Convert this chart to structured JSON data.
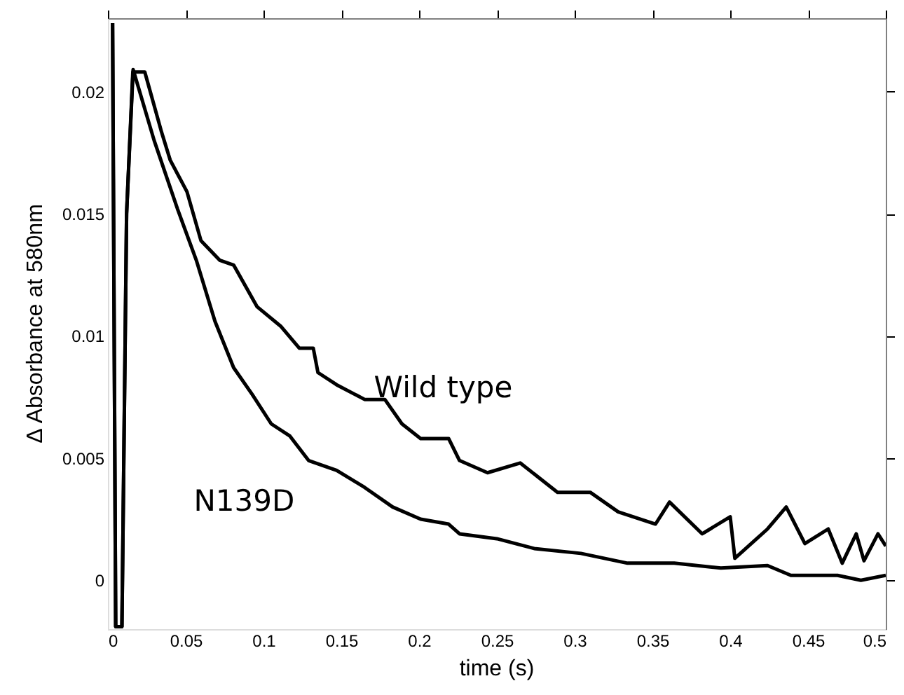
{
  "chart_data": {
    "type": "line",
    "xlabel": "time (s)",
    "ylabel": "Δ Absorbance at 580nm",
    "xlim": [
      0,
      0.5
    ],
    "ylim": [
      -0.002,
      0.023
    ],
    "xticks": [
      0,
      0.05,
      0.1,
      0.15,
      0.2,
      0.25,
      0.3,
      0.35,
      0.4,
      0.45,
      0.5
    ],
    "yticks": [
      0,
      0.005,
      0.01,
      0.015,
      0.02
    ],
    "grid": false,
    "legend": false,
    "marker": "none",
    "line_style": "solid",
    "series": [
      {
        "name": "Wild type",
        "color": "#000000",
        "x": [
          0.003,
          0.005,
          0.009,
          0.012,
          0.016,
          0.0237,
          0.0342,
          0.04,
          0.0508,
          0.0598,
          0.0718,
          0.0808,
          0.0958,
          0.111,
          0.123,
          0.132,
          0.135,
          0.147,
          0.165,
          0.178,
          0.189,
          0.201,
          0.219,
          0.226,
          0.244,
          0.265,
          0.289,
          0.31,
          0.328,
          0.352,
          0.361,
          0.382,
          0.4,
          0.403,
          0.424,
          0.436,
          0.448,
          0.463,
          0.472,
          0.481,
          0.486,
          0.495,
          0.5
        ],
        "values": [
          0.0228,
          -0.0019,
          -0.0019,
          0.015,
          0.0208,
          0.0208,
          0.0184,
          0.0172,
          0.0159,
          0.0139,
          0.0131,
          0.0129,
          0.0112,
          0.0104,
          0.0095,
          0.0095,
          0.0085,
          0.008,
          0.0074,
          0.0074,
          0.0064,
          0.0058,
          0.0058,
          0.0049,
          0.0044,
          0.0048,
          0.0036,
          0.0036,
          0.0028,
          0.0023,
          0.0032,
          0.0019,
          0.0026,
          0.0009,
          0.0021,
          0.003,
          0.0015,
          0.0021,
          0.0007,
          0.0019,
          0.0008,
          0.0019,
          0.0014
        ]
      },
      {
        "name": "N139D",
        "color": "#000000",
        "x": [
          0.003,
          0.005,
          0.009,
          0.012,
          0.0162,
          0.0297,
          0.0447,
          0.0568,
          0.0688,
          0.0808,
          0.0928,
          0.105,
          0.117,
          0.129,
          0.147,
          0.165,
          0.183,
          0.201,
          0.219,
          0.226,
          0.25,
          0.274,
          0.304,
          0.334,
          0.364,
          0.394,
          0.424,
          0.439,
          0.469,
          0.484,
          0.5
        ],
        "values": [
          0.0228,
          -0.0019,
          -0.0019,
          0.015,
          0.0209,
          0.018,
          0.0152,
          0.0131,
          0.0106,
          0.0087,
          0.0076,
          0.0064,
          0.0059,
          0.0049,
          0.0045,
          0.0038,
          0.003,
          0.0025,
          0.0023,
          0.0019,
          0.0017,
          0.0013,
          0.0011,
          0.0007,
          0.0007,
          0.0005,
          0.0006,
          0.0002,
          0.0002,
          0.0,
          0.0002
        ]
      }
    ]
  }
}
